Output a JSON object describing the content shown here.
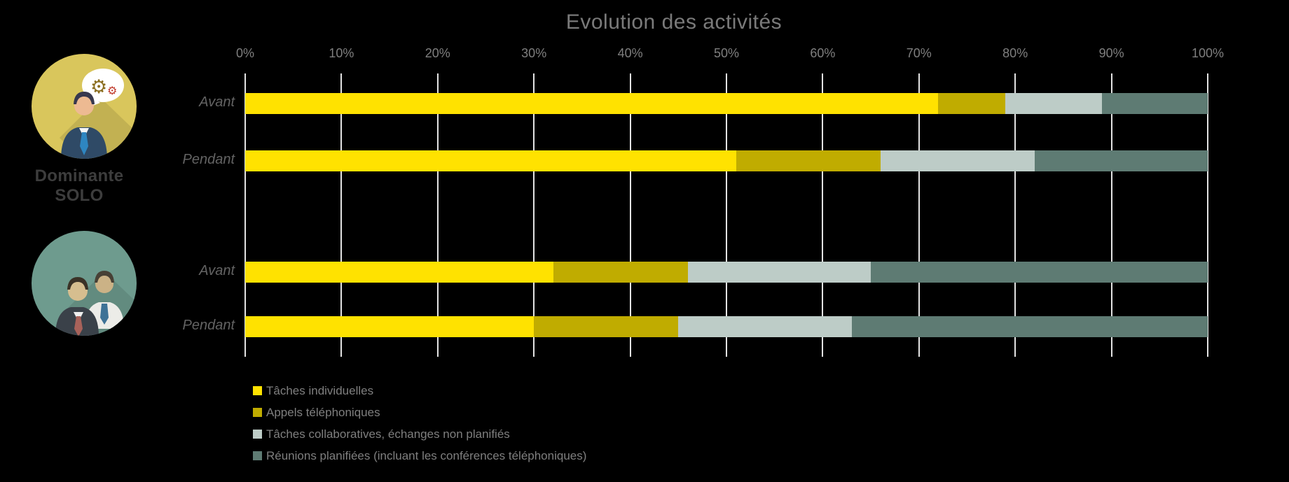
{
  "chart_data": {
    "type": "bar",
    "orientation": "horizontal-stacked",
    "title": "Evolution des activités",
    "x_axis": {
      "min": 0,
      "max": 100,
      "ticks": [
        "0%",
        "10%",
        "20%",
        "30%",
        "40%",
        "50%",
        "60%",
        "70%",
        "80%",
        "90%",
        "100%"
      ],
      "grid": true,
      "position": "top"
    },
    "legend_position": "bottom-left",
    "series": [
      {
        "name": "Tâches individuelles",
        "color": "#FFE200"
      },
      {
        "name": "Appels téléphoniques",
        "color": "#C0AC00"
      },
      {
        "name": "Tâches collaboratives, échanges non planifiés",
        "color": "#BDCCC7"
      },
      {
        "name": "Réunions planifiées (incluant les conférences téléphoniques)",
        "color": "#5E7B73"
      }
    ],
    "groups": [
      {
        "label": "Dominante SOLO",
        "icon": "businessman-gears-icon",
        "rows": [
          {
            "label": "Avant",
            "values": [
              72,
              7,
              10,
              11
            ]
          },
          {
            "label": "Pendant",
            "values": [
              51,
              15,
              16,
              18
            ]
          }
        ]
      },
      {
        "label": "",
        "icon": "two-businessmen-icon",
        "rows": [
          {
            "label": "Avant",
            "values": [
              32,
              14,
              19,
              35
            ]
          },
          {
            "label": "Pendant",
            "values": [
              30,
              15,
              18,
              37
            ]
          }
        ]
      }
    ]
  }
}
